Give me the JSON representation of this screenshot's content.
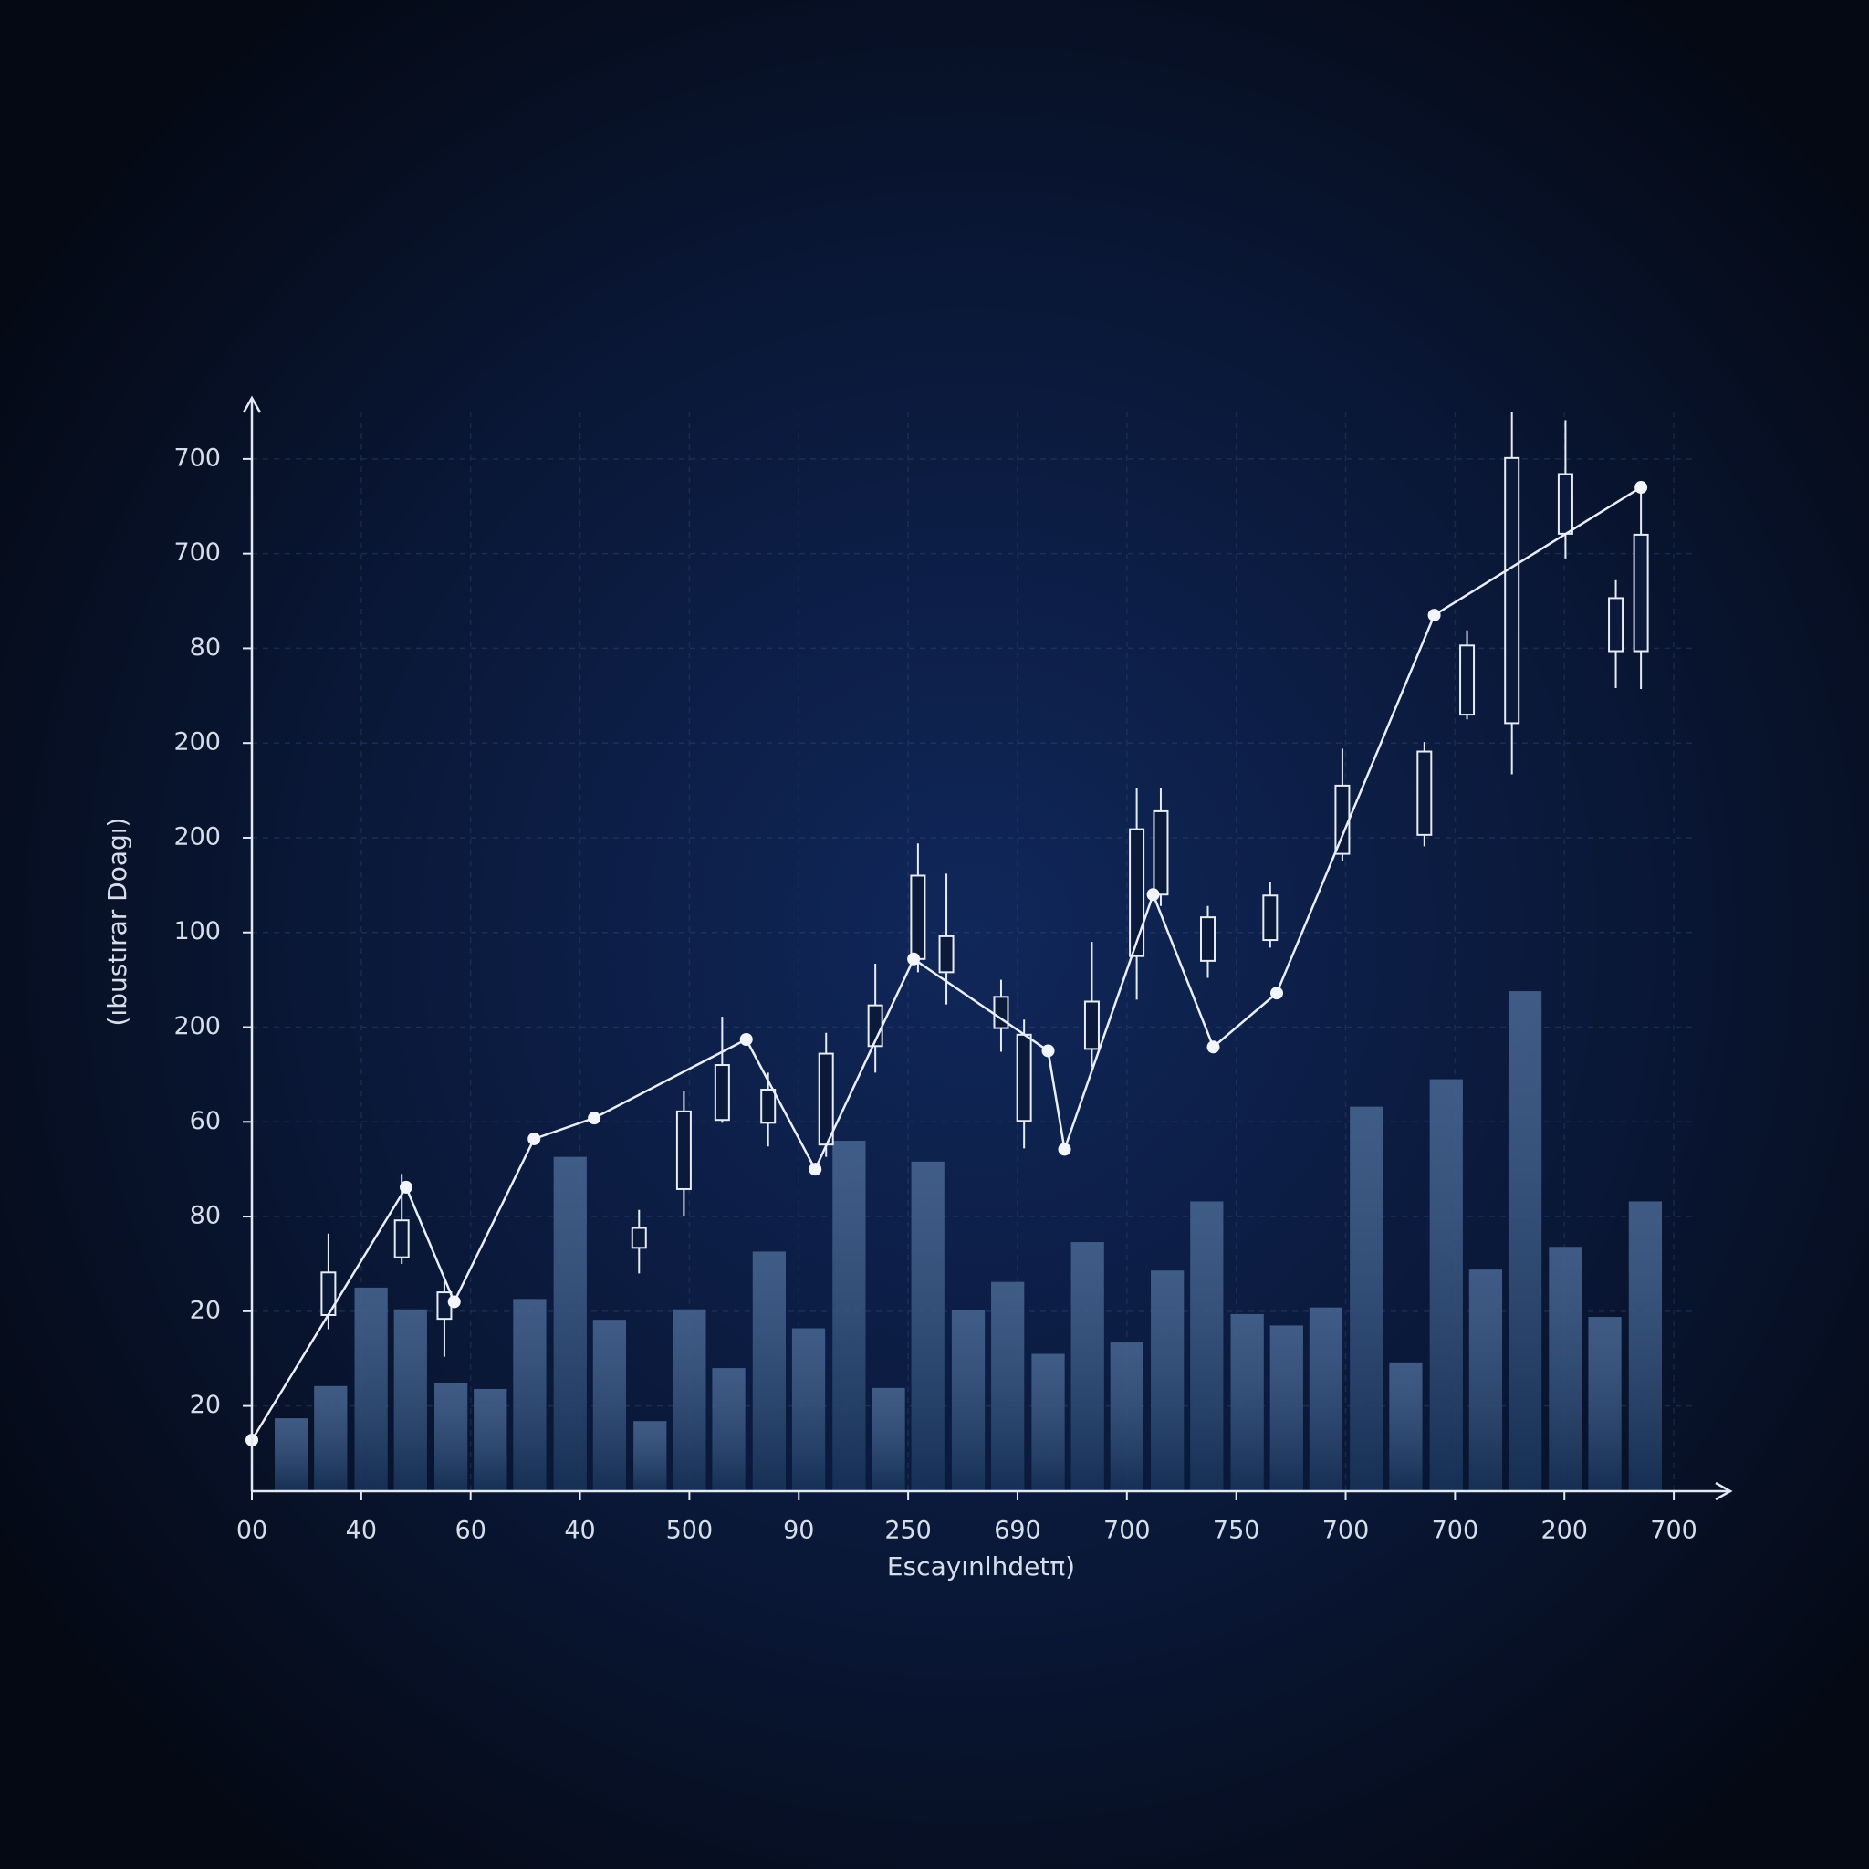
{
  "chart_data": {
    "type": "combo",
    "y_label": "(ıbustırar Doagı)",
    "x_label": "Escayınlhdetπ)",
    "xlim": [
      0,
      13.5
    ],
    "ylim": [
      0,
      11.4
    ],
    "xticks": [
      {
        "value": 0,
        "label": "00"
      },
      {
        "value": 1,
        "label": "40"
      },
      {
        "value": 2,
        "label": "60"
      },
      {
        "value": 3,
        "label": "40"
      },
      {
        "value": 4,
        "label": "500"
      },
      {
        "value": 5,
        "label": "90"
      },
      {
        "value": 6,
        "label": "250"
      },
      {
        "value": 7,
        "label": "690"
      },
      {
        "value": 8,
        "label": "700"
      },
      {
        "value": 9,
        "label": "750"
      },
      {
        "value": 10,
        "label": "700"
      },
      {
        "value": 11,
        "label": "700"
      },
      {
        "value": 12,
        "label": "200"
      },
      {
        "value": 13,
        "label": "700"
      }
    ],
    "yticks": [
      {
        "value": 0.9,
        "label": "20"
      },
      {
        "value": 1.9,
        "label": "20"
      },
      {
        "value": 2.9,
        "label": "80"
      },
      {
        "value": 3.9,
        "label": "60"
      },
      {
        "value": 4.9,
        "label": "200"
      },
      {
        "value": 5.9,
        "label": "100"
      },
      {
        "value": 6.9,
        "label": "200"
      },
      {
        "value": 7.9,
        "label": "200"
      },
      {
        "value": 8.9,
        "label": "80"
      },
      {
        "value": 9.9,
        "label": "700"
      },
      {
        "value": 10.9,
        "label": "700"
      }
    ],
    "grid": true,
    "layers": [
      {
        "type": "bar",
        "color": "#21457a",
        "x": [
          0.36,
          0.72,
          1.09,
          1.45,
          1.82,
          2.18,
          2.54,
          2.91,
          3.27,
          3.64,
          4.0,
          4.36,
          4.73,
          5.09,
          5.46,
          5.82,
          6.18,
          6.55,
          6.91,
          7.28,
          7.64,
          8.0,
          8.37,
          8.73,
          9.1,
          9.46,
          9.82,
          10.19,
          10.55,
          10.92,
          11.28,
          11.64,
          12.01,
          12.37,
          12.74
        ],
        "values": [
          0.77,
          1.11,
          2.15,
          1.92,
          1.14,
          1.08,
          2.03,
          3.53,
          1.81,
          0.74,
          1.92,
          1.3,
          2.53,
          1.72,
          3.7,
          1.09,
          3.48,
          1.91,
          2.21,
          1.45,
          2.63,
          1.57,
          2.33,
          3.06,
          1.87,
          1.75,
          1.94,
          4.06,
          1.36,
          4.35,
          2.34,
          5.28,
          2.58,
          1.84,
          3.06
        ]
      },
      {
        "type": "candlestick",
        "color": "#e6ecf6",
        "x": [
          0.7,
          1.37,
          1.76,
          3.54,
          3.95,
          4.3,
          4.72,
          5.25,
          5.7,
          6.09,
          6.35,
          6.85,
          7.06,
          7.68,
          8.09,
          8.31,
          8.74,
          9.31,
          9.97,
          10.72,
          11.11,
          11.52,
          12.01,
          12.47,
          12.7
        ],
        "open": [
          1.86,
          2.47,
          2.1,
          2.57,
          3.19,
          3.92,
          4.24,
          3.66,
          4.7,
          5.62,
          5.86,
          5.22,
          4.82,
          4.67,
          5.65,
          6.3,
          6.06,
          5.82,
          6.73,
          6.93,
          8.2,
          8.11,
          10.74,
          9.43,
          8.87
        ],
        "close": [
          2.31,
          2.86,
          1.82,
          2.78,
          4.01,
          4.5,
          3.89,
          4.62,
          5.13,
          6.5,
          5.48,
          4.89,
          3.91,
          5.17,
          6.99,
          7.18,
          5.6,
          6.29,
          7.45,
          7.81,
          8.93,
          10.91,
          10.11,
          8.87,
          10.1
        ],
        "high": [
          2.72,
          3.35,
          2.21,
          2.97,
          4.23,
          5.01,
          4.42,
          4.84,
          5.57,
          6.84,
          6.52,
          5.4,
          4.98,
          5.8,
          7.43,
          7.43,
          6.18,
          6.43,
          7.84,
          7.91,
          9.09,
          11.4,
          11.31,
          9.62,
          10.54
        ],
        "low": [
          1.71,
          2.4,
          1.42,
          2.3,
          2.91,
          3.89,
          3.64,
          3.53,
          4.42,
          5.48,
          5.14,
          4.64,
          3.62,
          4.48,
          5.19,
          6.18,
          5.42,
          5.74,
          6.65,
          6.81,
          8.15,
          7.57,
          9.85,
          8.48,
          8.47
        ]
      },
      {
        "type": "line",
        "color": "#e9eef7",
        "x": [
          0,
          1.41,
          1.85,
          2.58,
          3.13,
          4.52,
          5.15,
          6.05,
          7.28,
          7.43,
          8.24,
          8.79,
          9.37,
          10.81,
          12.7
        ],
        "values": [
          0.54,
          3.21,
          2.0,
          3.72,
          3.94,
          4.77,
          3.4,
          5.62,
          4.65,
          3.61,
          6.3,
          4.69,
          5.26,
          9.25,
          10.6
        ]
      }
    ]
  }
}
